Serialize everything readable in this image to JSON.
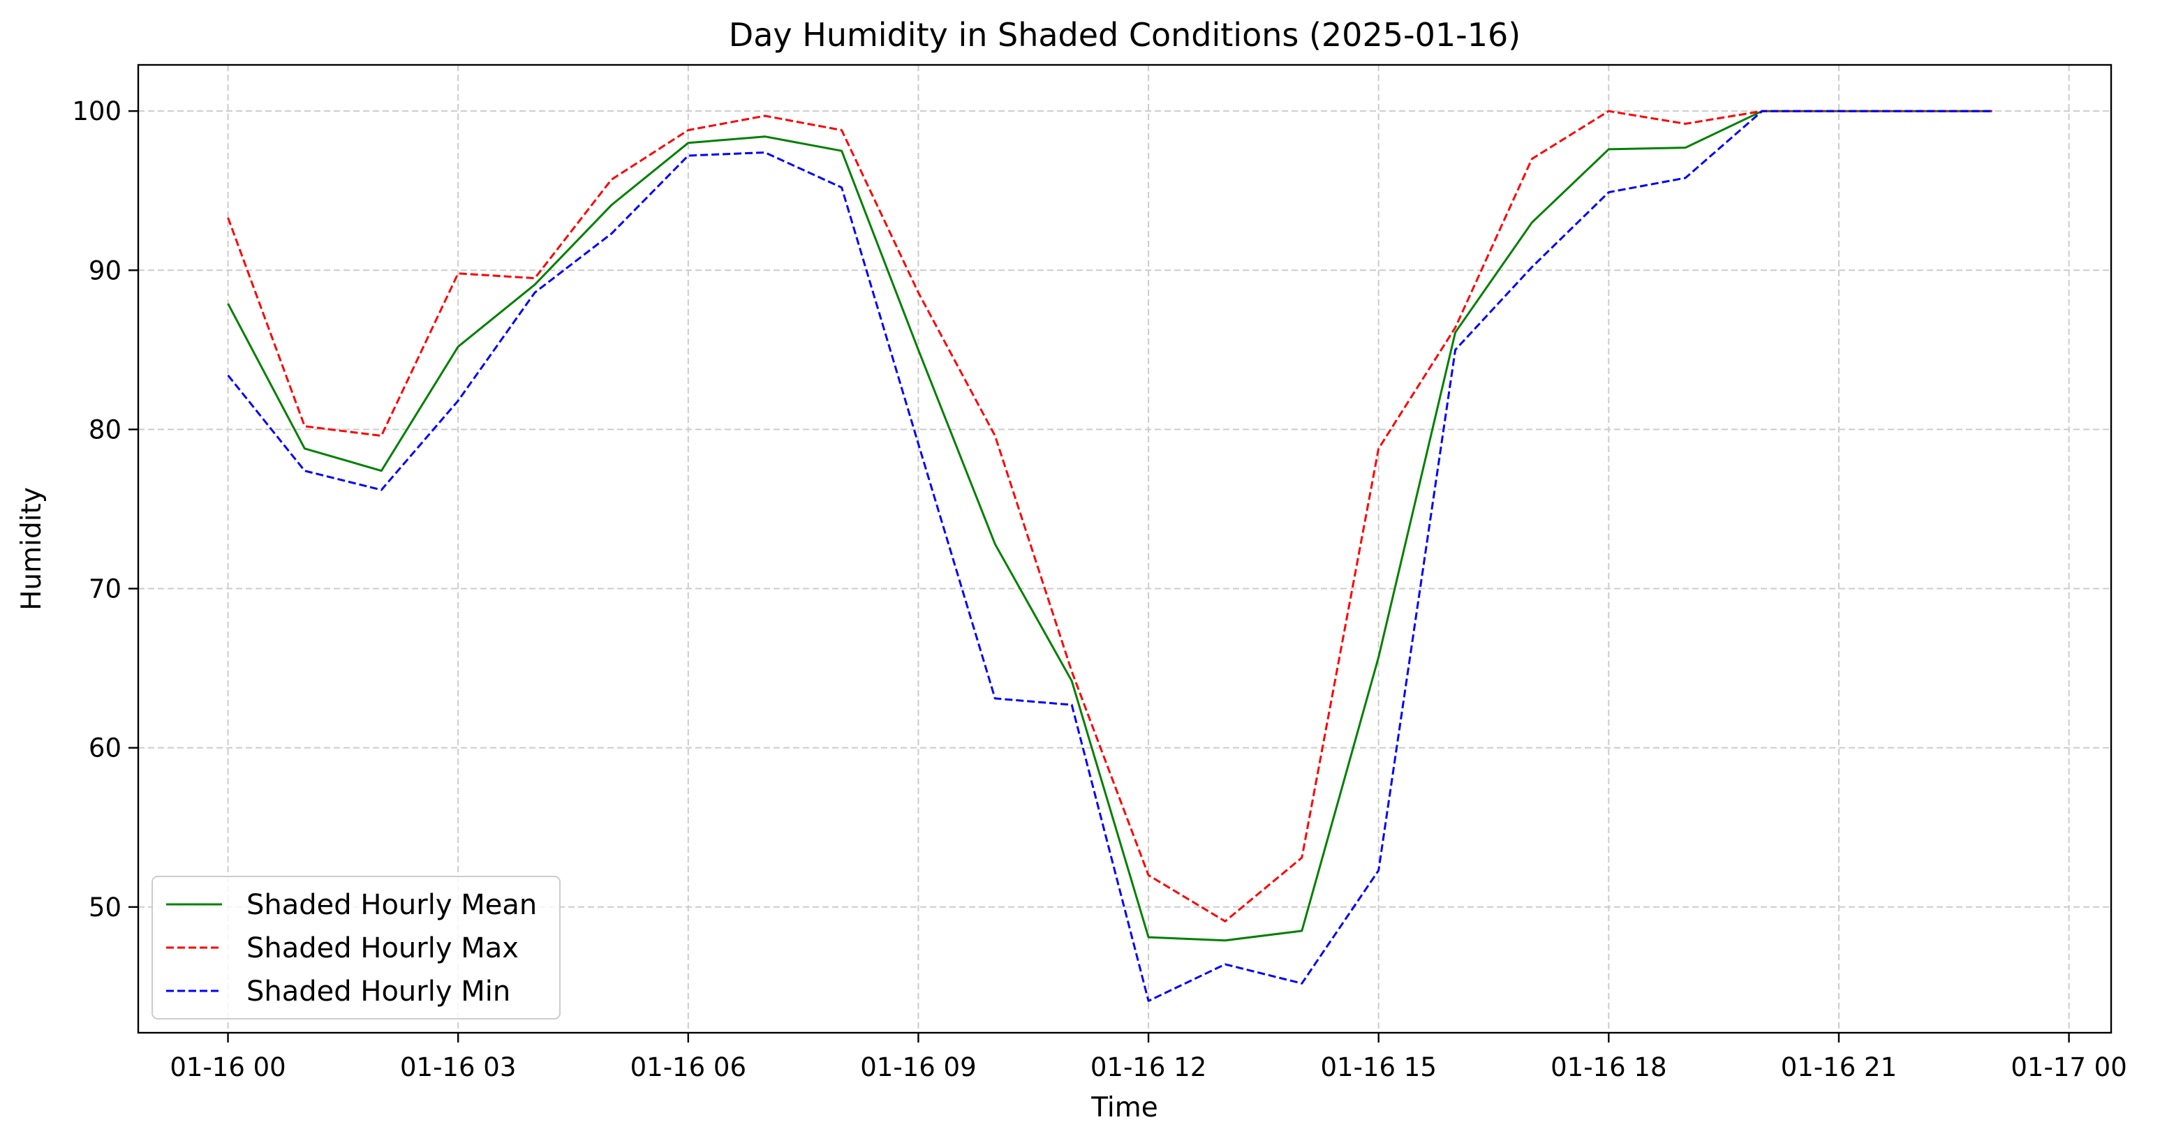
{
  "chart_data": {
    "type": "line",
    "title": "Day Humidity in Shaded Conditions (2025-01-16)",
    "xlabel": "Time",
    "ylabel": "Humidity",
    "x_hours": [
      0,
      1,
      2,
      3,
      4,
      5,
      6,
      7,
      8,
      9,
      10,
      11,
      12,
      13,
      14,
      15,
      16,
      17,
      18,
      19,
      20,
      21,
      22,
      23
    ],
    "xlim": [
      -1.17,
      24.55
    ],
    "ylim": [
      42.1,
      102.9
    ],
    "x_ticks": [
      0,
      3,
      6,
      9,
      12,
      15,
      18,
      21,
      24
    ],
    "x_tick_labels": [
      "01-16 00",
      "01-16 03",
      "01-16 06",
      "01-16 09",
      "01-16 12",
      "01-16 15",
      "01-16 18",
      "01-16 21",
      "01-17 00"
    ],
    "y_ticks": [
      50,
      60,
      70,
      80,
      90,
      100
    ],
    "y_tick_labels": [
      "50",
      "60",
      "70",
      "80",
      "90",
      "100"
    ],
    "grid": true,
    "legend_position": "lower-left",
    "series": [
      {
        "name": "Shaded Hourly Mean",
        "color": "#008000",
        "dash": "solid",
        "values": [
          87.9,
          78.8,
          77.4,
          85.2,
          89.1,
          94.1,
          98.0,
          98.4,
          97.5,
          85.0,
          72.8,
          64.2,
          48.1,
          47.9,
          48.5,
          65.7,
          86.1,
          93.0,
          97.6,
          97.7,
          100.0,
          100.0,
          100.0,
          100.0
        ]
      },
      {
        "name": "Shaded Hourly Max",
        "color": "#ff0000",
        "dash": "dashed",
        "values": [
          93.3,
          80.2,
          79.6,
          89.8,
          89.5,
          95.7,
          98.8,
          99.7,
          98.8,
          88.6,
          79.6,
          64.8,
          52.0,
          49.1,
          53.1,
          78.8,
          86.4,
          97.0,
          100.0,
          99.2,
          100.0,
          100.0,
          100.0,
          100.0
        ]
      },
      {
        "name": "Shaded Hourly Min",
        "color": "#0000ff",
        "dash": "dashed",
        "values": [
          83.4,
          77.4,
          76.2,
          81.8,
          88.6,
          92.3,
          97.2,
          97.4,
          95.2,
          79.1,
          63.1,
          62.7,
          44.1,
          46.4,
          45.2,
          52.3,
          85.0,
          90.2,
          94.9,
          95.8,
          100.0,
          100.0,
          100.0,
          100.0
        ]
      }
    ]
  }
}
